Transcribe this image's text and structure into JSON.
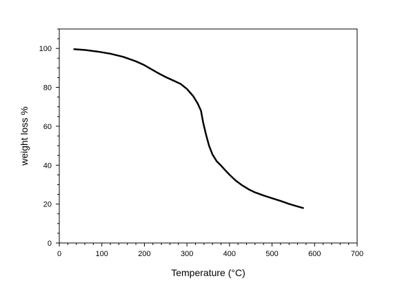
{
  "chart_data": {
    "type": "line",
    "title": "",
    "xlabel": "Temperature (°C)",
    "ylabel": "weight loss %",
    "xlim": [
      0,
      700
    ],
    "ylim": [
      0,
      110
    ],
    "x_ticks": [
      0,
      100,
      200,
      300,
      400,
      500,
      600,
      700
    ],
    "y_ticks": [
      0,
      20,
      40,
      60,
      80,
      100
    ],
    "grid": false,
    "legend": "none",
    "series": [
      {
        "color": "#000000",
        "x": [
          35,
          60,
          90,
          120,
          150,
          180,
          200,
          215,
          230,
          250,
          270,
          285,
          300,
          315,
          325,
          333,
          338,
          345,
          352,
          360,
          370,
          380,
          390,
          400,
          415,
          430,
          445,
          460,
          480,
          500,
          520,
          540,
          555,
          573
        ],
        "y": [
          99.6,
          99.2,
          98.4,
          97.3,
          95.7,
          93.4,
          91.4,
          89.5,
          87.6,
          85.3,
          83.3,
          81.8,
          79.2,
          75.4,
          71.8,
          68.0,
          62.0,
          55.6,
          50.0,
          45.5,
          42.0,
          39.8,
          37.4,
          35.1,
          32.0,
          29.6,
          27.6,
          26.0,
          24.4,
          23.0,
          21.6,
          20.1,
          19.1,
          18.0
        ]
      }
    ]
  }
}
